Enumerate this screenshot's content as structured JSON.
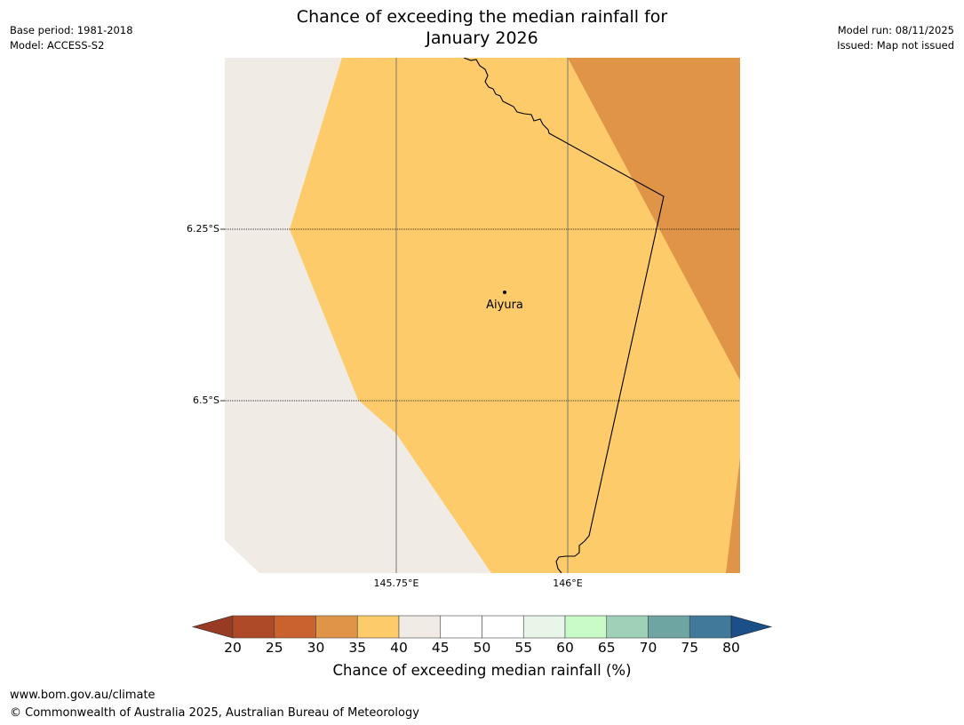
{
  "header": {
    "title_line1": "Chance of exceeding the median rainfall for",
    "title_line2": "January 2026",
    "base_period": "Base period: 1981-2018",
    "model": "Model: ACCESS-S2",
    "model_run": "Model run: 08/11/2025",
    "issued": "Issued: Map not issued"
  },
  "map": {
    "lat_labels": [
      "6.25°S",
      "6.5°S"
    ],
    "lon_labels": [
      "145.75°E",
      "146°E"
    ],
    "place": "Aiyura",
    "colors": {
      "background": "#f0ebe5",
      "band_35_40": "#fdcb69",
      "band_30_35": "#e09448"
    }
  },
  "colorbar": {
    "title": "Chance of exceeding median rainfall (%)",
    "ticks": [
      "20",
      "25",
      "30",
      "35",
      "40",
      "45",
      "50",
      "55",
      "60",
      "65",
      "70",
      "75",
      "80"
    ],
    "colors": [
      "#ae4a28",
      "#ca622f",
      "#e09448",
      "#fdcb69",
      "#f0ebe5",
      "#ffffff",
      "#ffffff",
      "#e8f5e8",
      "#c9fbc9",
      "#9fd1b9",
      "#6ea5a3",
      "#41799a"
    ],
    "under_color": "#993a24",
    "over_color": "#1a4f87"
  },
  "footer": {
    "url": "www.bom.gov.au/climate",
    "copyright": "© Commonwealth of Australia 2025, Australian Bureau of Meteorology"
  }
}
